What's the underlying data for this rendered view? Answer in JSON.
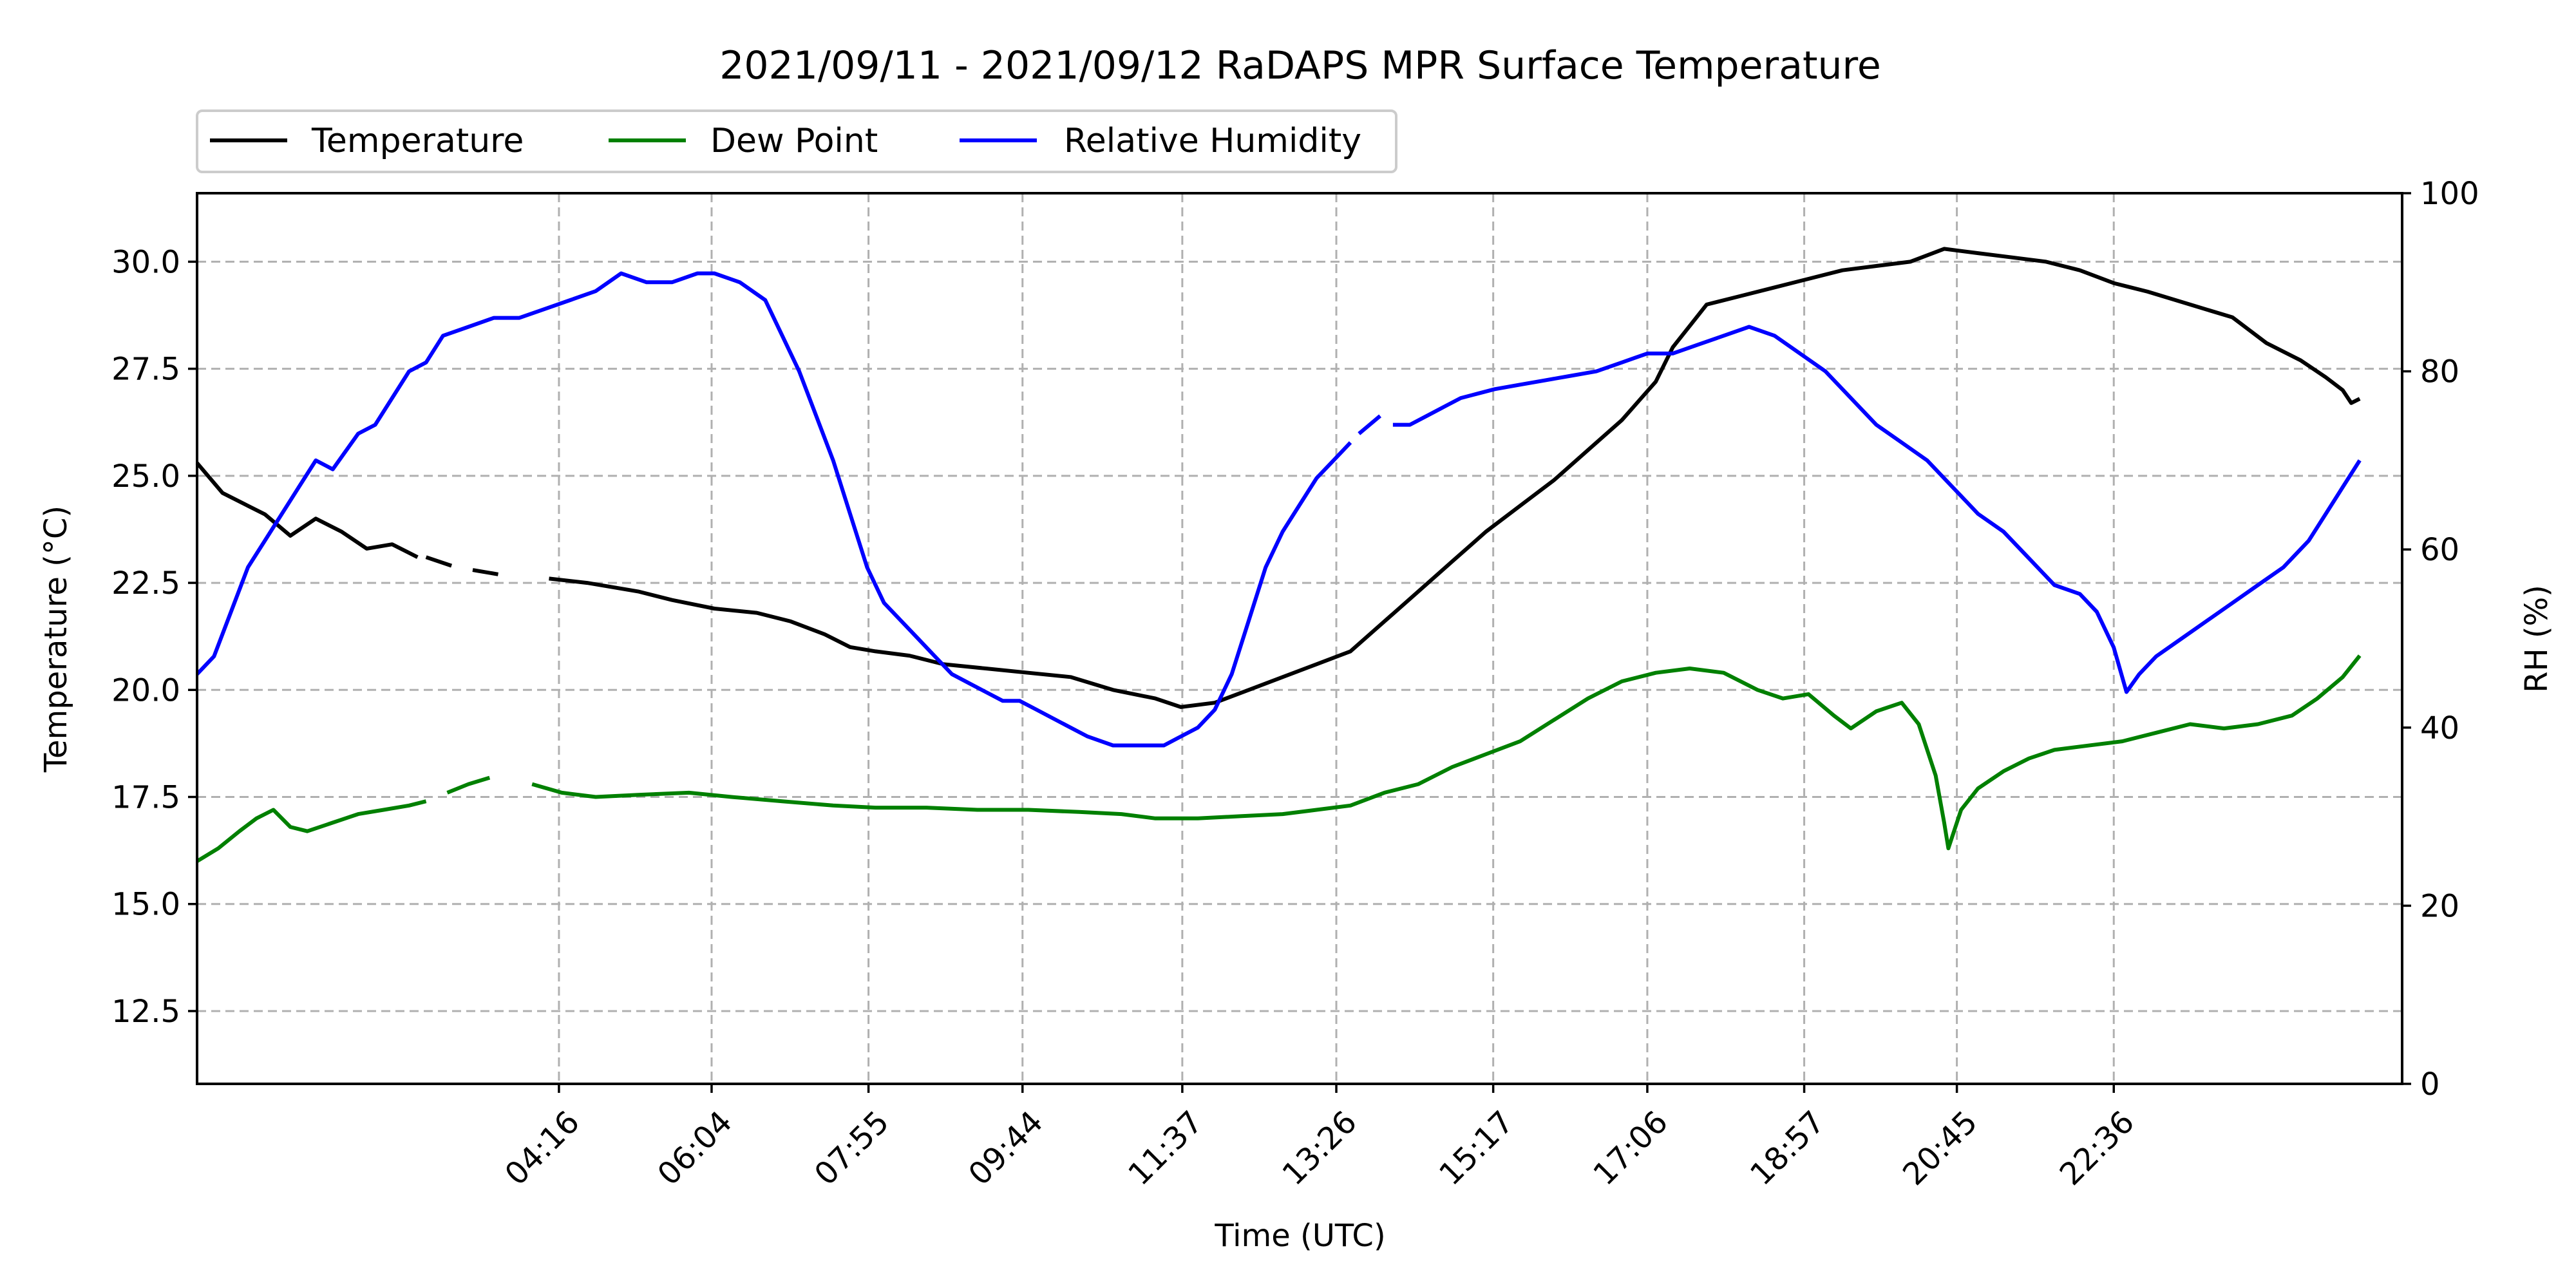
{
  "chart_data": {
    "type": "line",
    "title": "2021/09/11 - 2021/09/12 RaDAPS MPR Surface Temperature",
    "xlabel": "Time (UTC)",
    "ylabel": "Temperature ($^\\circ$C)",
    "ylabel_display": "Temperature (°C)",
    "y2label": "RH (%)",
    "x_unit": "hours since 2021/09/11 00:00 UTC",
    "xlim": [
      0,
      26.0
    ],
    "ylim": [
      10.8,
      31.6
    ],
    "y2lim": [
      0,
      100
    ],
    "x_ticks": [
      {
        "x": 4.267,
        "label": "04:16"
      },
      {
        "x": 6.067,
        "label": "06:04"
      },
      {
        "x": 7.917,
        "label": "07:55"
      },
      {
        "x": 9.733,
        "label": "09:44"
      },
      {
        "x": 11.617,
        "label": "11:37"
      },
      {
        "x": 13.433,
        "label": "13:26"
      },
      {
        "x": 15.283,
        "label": "15:17"
      },
      {
        "x": 17.1,
        "label": "17:06"
      },
      {
        "x": 18.95,
        "label": "18:57"
      },
      {
        "x": 20.75,
        "label": "20:45"
      },
      {
        "x": 22.6,
        "label": "22:36"
      }
    ],
    "y_ticks": [
      {
        "v": 12.5,
        "label": "12.5"
      },
      {
        "v": 15.0,
        "label": "15.0"
      },
      {
        "v": 17.5,
        "label": "17.5"
      },
      {
        "v": 20.0,
        "label": "20.0"
      },
      {
        "v": 22.5,
        "label": "22.5"
      },
      {
        "v": 25.0,
        "label": "25.0"
      },
      {
        "v": 27.5,
        "label": "27.5"
      },
      {
        "v": 30.0,
        "label": "30.0"
      }
    ],
    "y2_ticks": [
      {
        "v": 0,
        "label": "0"
      },
      {
        "v": 20,
        "label": "20"
      },
      {
        "v": 40,
        "label": "40"
      },
      {
        "v": 60,
        "label": "60"
      },
      {
        "v": 80,
        "label": "80"
      },
      {
        "v": 100,
        "label": "100"
      }
    ],
    "grid": true,
    "legend_position": "top-left-outside",
    "series": [
      {
        "name": "Temperature",
        "axis": "left",
        "color": "#000000",
        "segments": [
          [
            [
              0.0,
              25.3
            ],
            [
              0.3,
              24.6
            ],
            [
              0.6,
              24.3
            ],
            [
              0.8,
              24.1
            ],
            [
              1.1,
              23.6
            ],
            [
              1.4,
              24.0
            ],
            [
              1.7,
              23.7
            ],
            [
              2.0,
              23.3
            ],
            [
              2.3,
              23.4
            ],
            [
              2.6,
              23.1
            ]
          ],
          [
            [
              2.7,
              23.1
            ],
            [
              3.0,
              22.9
            ]
          ],
          [
            [
              3.25,
              22.8
            ],
            [
              3.55,
              22.7
            ]
          ],
          [
            [
              4.15,
              22.6
            ],
            [
              4.6,
              22.5
            ],
            [
              5.2,
              22.3
            ],
            [
              5.6,
              22.1
            ],
            [
              6.1,
              21.9
            ],
            [
              6.6,
              21.8
            ],
            [
              7.0,
              21.6
            ],
            [
              7.4,
              21.3
            ],
            [
              7.7,
              21.0
            ],
            [
              8.0,
              20.9
            ],
            [
              8.4,
              20.8
            ],
            [
              8.8,
              20.6
            ],
            [
              9.3,
              20.5
            ],
            [
              9.8,
              20.4
            ],
            [
              10.3,
              20.3
            ],
            [
              10.8,
              20.0
            ],
            [
              11.3,
              19.8
            ],
            [
              11.6,
              19.6
            ],
            [
              12.0,
              19.7
            ],
            [
              12.4,
              20.0
            ],
            [
              12.8,
              20.3
            ],
            [
              13.2,
              20.6
            ],
            [
              13.6,
              20.9
            ],
            [
              14.0,
              21.6
            ],
            [
              14.4,
              22.3
            ],
            [
              14.8,
              23.0
            ],
            [
              15.2,
              23.7
            ],
            [
              15.6,
              24.3
            ],
            [
              16.0,
              24.9
            ],
            [
              16.4,
              25.6
            ],
            [
              16.8,
              26.3
            ],
            [
              17.2,
              27.2
            ],
            [
              17.4,
              28.0
            ],
            [
              17.6,
              28.5
            ],
            [
              17.8,
              29.0
            ],
            [
              18.2,
              29.2
            ],
            [
              18.6,
              29.4
            ],
            [
              19.0,
              29.6
            ],
            [
              19.4,
              29.8
            ],
            [
              19.8,
              29.9
            ],
            [
              20.2,
              30.0
            ],
            [
              20.6,
              30.3
            ],
            [
              21.0,
              30.2
            ],
            [
              21.4,
              30.1
            ],
            [
              21.8,
              30.0
            ],
            [
              22.2,
              29.8
            ],
            [
              22.6,
              29.5
            ],
            [
              23.0,
              29.3
            ],
            [
              23.5,
              29.0
            ],
            [
              24.0,
              28.7
            ],
            [
              24.4,
              28.1
            ],
            [
              24.8,
              27.7
            ],
            [
              25.1,
              27.3
            ],
            [
              25.3,
              27.0
            ],
            [
              25.4,
              26.7
            ],
            [
              25.5,
              26.8
            ]
          ]
        ]
      },
      {
        "name": "Dew Point",
        "axis": "left",
        "color": "#008000",
        "segments": [
          [
            [
              0.0,
              16.0
            ],
            [
              0.25,
              16.3
            ],
            [
              0.5,
              16.7
            ],
            [
              0.7,
              17.0
            ],
            [
              0.9,
              17.2
            ],
            [
              1.1,
              16.8
            ],
            [
              1.3,
              16.7
            ],
            [
              1.6,
              16.9
            ],
            [
              1.9,
              17.1
            ],
            [
              2.2,
              17.2
            ],
            [
              2.5,
              17.3
            ],
            [
              2.7,
              17.4
            ]
          ],
          [
            [
              2.95,
              17.6
            ],
            [
              3.2,
              17.8
            ],
            [
              3.45,
              17.95
            ]
          ],
          [
            [
              3.95,
              17.8
            ],
            [
              4.3,
              17.6
            ],
            [
              4.7,
              17.5
            ],
            [
              5.2,
              17.55
            ],
            [
              5.8,
              17.6
            ],
            [
              6.3,
              17.5
            ],
            [
              6.9,
              17.4
            ],
            [
              7.5,
              17.3
            ],
            [
              8.0,
              17.25
            ],
            [
              8.6,
              17.25
            ],
            [
              9.2,
              17.2
            ],
            [
              9.8,
              17.2
            ],
            [
              10.4,
              17.15
            ],
            [
              10.9,
              17.1
            ],
            [
              11.3,
              17.0
            ],
            [
              11.8,
              17.0
            ],
            [
              12.3,
              17.05
            ],
            [
              12.8,
              17.1
            ],
            [
              13.2,
              17.2
            ],
            [
              13.6,
              17.3
            ],
            [
              14.0,
              17.6
            ],
            [
              14.4,
              17.8
            ],
            [
              14.8,
              18.2
            ],
            [
              15.2,
              18.5
            ],
            [
              15.6,
              18.8
            ],
            [
              16.0,
              19.3
            ],
            [
              16.4,
              19.8
            ],
            [
              16.8,
              20.2
            ],
            [
              17.2,
              20.4
            ],
            [
              17.6,
              20.5
            ],
            [
              18.0,
              20.4
            ],
            [
              18.4,
              20.0
            ],
            [
              18.7,
              19.8
            ],
            [
              19.0,
              19.9
            ],
            [
              19.3,
              19.4
            ],
            [
              19.5,
              19.1
            ],
            [
              19.8,
              19.5
            ],
            [
              20.1,
              19.7
            ],
            [
              20.3,
              19.2
            ],
            [
              20.5,
              18.0
            ],
            [
              20.6,
              16.9
            ],
            [
              20.65,
              16.3
            ],
            [
              20.8,
              17.2
            ],
            [
              21.0,
              17.7
            ],
            [
              21.3,
              18.1
            ],
            [
              21.6,
              18.4
            ],
            [
              21.9,
              18.6
            ],
            [
              22.3,
              18.7
            ],
            [
              22.7,
              18.8
            ],
            [
              23.1,
              19.0
            ],
            [
              23.5,
              19.2
            ],
            [
              23.9,
              19.1
            ],
            [
              24.3,
              19.2
            ],
            [
              24.7,
              19.4
            ],
            [
              25.0,
              19.8
            ],
            [
              25.3,
              20.3
            ],
            [
              25.5,
              20.8
            ]
          ]
        ]
      },
      {
        "name": "Relative Humidity",
        "axis": "right",
        "color": "#0000ff",
        "segments": [
          [
            [
              0.0,
              46
            ],
            [
              0.2,
              48
            ],
            [
              0.4,
              53
            ],
            [
              0.6,
              58
            ],
            [
              0.8,
              61
            ],
            [
              1.0,
              64
            ],
            [
              1.2,
              67
            ],
            [
              1.4,
              70
            ],
            [
              1.6,
              69
            ],
            [
              1.9,
              73
            ],
            [
              2.1,
              74
            ],
            [
              2.3,
              77
            ],
            [
              2.5,
              80
            ],
            [
              2.7,
              81
            ],
            [
              2.9,
              84
            ],
            [
              3.2,
              85
            ],
            [
              3.5,
              86
            ],
            [
              3.8,
              86
            ],
            [
              4.1,
              87
            ],
            [
              4.4,
              88
            ],
            [
              4.7,
              89
            ],
            [
              5.0,
              91
            ],
            [
              5.3,
              90
            ],
            [
              5.6,
              90
            ],
            [
              5.9,
              91
            ],
            [
              6.1,
              91
            ],
            [
              6.4,
              90
            ],
            [
              6.7,
              88
            ],
            [
              6.9,
              84
            ],
            [
              7.1,
              80
            ],
            [
              7.3,
              75
            ],
            [
              7.5,
              70
            ],
            [
              7.7,
              64
            ],
            [
              7.9,
              58
            ],
            [
              8.1,
              54
            ],
            [
              8.3,
              52
            ],
            [
              8.5,
              50
            ],
            [
              8.7,
              48
            ],
            [
              8.9,
              46
            ],
            [
              9.1,
              45
            ],
            [
              9.3,
              44
            ],
            [
              9.5,
              43
            ],
            [
              9.7,
              43
            ],
            [
              9.9,
              42
            ],
            [
              10.1,
              41
            ],
            [
              10.3,
              40
            ],
            [
              10.5,
              39
            ],
            [
              10.8,
              38
            ],
            [
              11.1,
              38
            ],
            [
              11.4,
              38
            ],
            [
              11.6,
              39
            ],
            [
              11.8,
              40
            ],
            [
              12.0,
              42
            ],
            [
              12.2,
              46
            ],
            [
              12.4,
              52
            ],
            [
              12.6,
              58
            ],
            [
              12.8,
              62
            ],
            [
              13.0,
              65
            ],
            [
              13.2,
              68
            ],
            [
              13.4,
              70
            ],
            [
              13.6,
              72
            ]
          ],
          [
            [
              13.7,
              73
            ],
            [
              13.95,
              75
            ]
          ],
          [
            [
              14.1,
              74
            ],
            [
              14.3,
              74
            ],
            [
              14.5,
              75
            ],
            [
              14.7,
              76
            ],
            [
              14.9,
              77
            ],
            [
              15.1,
              77.5
            ],
            [
              15.3,
              78
            ],
            [
              15.6,
              78.5
            ],
            [
              15.9,
              79
            ],
            [
              16.2,
              79.5
            ],
            [
              16.5,
              80
            ],
            [
              16.8,
              81
            ],
            [
              17.1,
              82
            ],
            [
              17.4,
              82
            ],
            [
              17.7,
              83
            ],
            [
              18.0,
              84
            ],
            [
              18.3,
              85
            ],
            [
              18.6,
              84
            ],
            [
              18.9,
              82
            ],
            [
              19.2,
              80
            ],
            [
              19.5,
              77
            ],
            [
              19.8,
              74
            ],
            [
              20.1,
              72
            ],
            [
              20.4,
              70
            ],
            [
              20.7,
              67
            ],
            [
              21.0,
              64
            ],
            [
              21.3,
              62
            ],
            [
              21.6,
              59
            ],
            [
              21.9,
              56
            ],
            [
              22.2,
              55
            ],
            [
              22.4,
              53
            ],
            [
              22.6,
              49
            ],
            [
              22.75,
              44
            ],
            [
              22.9,
              46
            ],
            [
              23.1,
              48
            ],
            [
              23.4,
              50
            ],
            [
              23.7,
              52
            ],
            [
              24.0,
              54
            ],
            [
              24.3,
              56
            ],
            [
              24.6,
              58
            ],
            [
              24.9,
              61
            ],
            [
              25.1,
              64
            ],
            [
              25.3,
              67
            ],
            [
              25.5,
              70
            ]
          ]
        ]
      }
    ]
  }
}
